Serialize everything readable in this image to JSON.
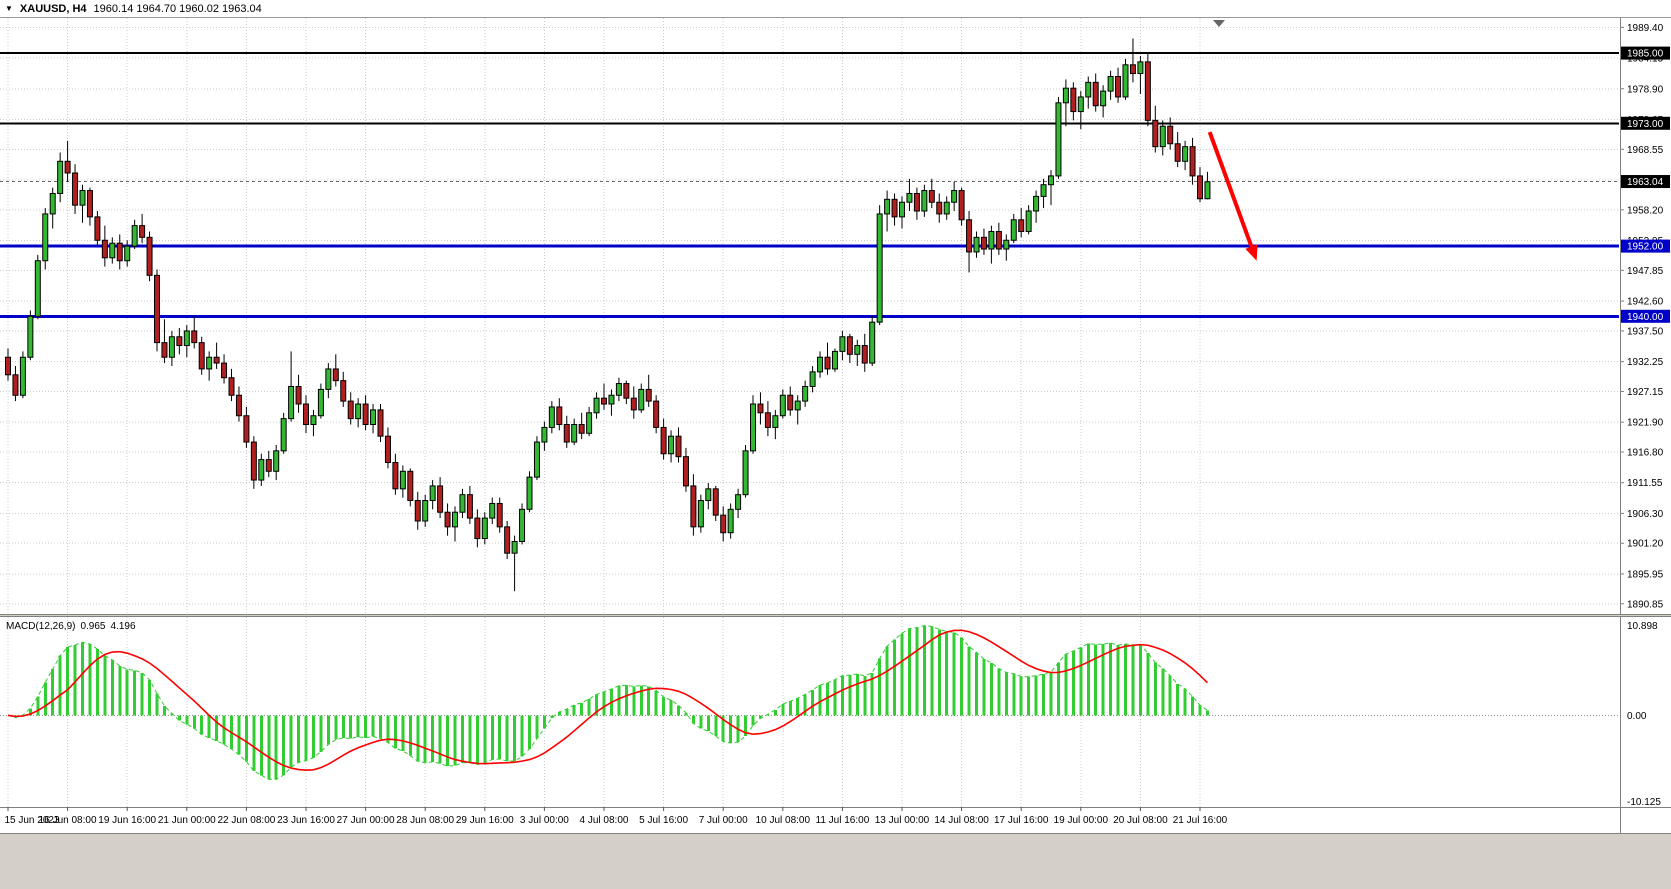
{
  "header": {
    "symbol": "XAUUSD, H4",
    "ohlc": "1960.14 1964.70 1960.02 1963.04"
  },
  "chart_data": {
    "type": "candlestick",
    "symbol": "XAUUSD",
    "timeframe": "H4",
    "title": "XAUUSD, H4  1960.14 1964.70 1960.02 1963.04",
    "price_axis": {
      "range": [
        1889.1,
        1991.0
      ],
      "ticks": [
        1989.4,
        1984.15,
        1978.9,
        1973.65,
        1968.55,
        1963.3,
        1958.2,
        1952.95,
        1947.85,
        1942.6,
        1937.5,
        1932.25,
        1927.15,
        1921.9,
        1916.8,
        1911.55,
        1906.3,
        1901.2,
        1895.95,
        1890.85
      ]
    },
    "time_axis": {
      "every_n_bars": 8,
      "labels": [
        "15 Jun 2023",
        "16 Jun 08:00",
        "19 Jun 16:00",
        "21 Jun 00:00",
        "22 Jun 08:00",
        "23 Jun 16:00",
        "27 Jun 00:00",
        "28 Jun 08:00",
        "29 Jun 16:00",
        "3 Jul 00:00",
        "4 Jul 08:00",
        "5 Jul 16:00",
        "7 Jul 00:00",
        "10 Jul 08:00",
        "11 Jul 16:00",
        "13 Jul 00:00",
        "14 Jul 08:00",
        "17 Jul 16:00",
        "19 Jul 00:00",
        "20 Jul 08:00",
        "21 Jul 16:00"
      ]
    },
    "candles": [
      [
        1933.0,
        1934.5,
        1929.0,
        1930.0
      ],
      [
        1930.0,
        1931.5,
        1925.5,
        1926.5
      ],
      [
        1926.5,
        1934.0,
        1926.0,
        1933.0
      ],
      [
        1933.0,
        1941.0,
        1932.5,
        1940.0
      ],
      [
        1940.0,
        1950.5,
        1939.5,
        1949.5
      ],
      [
        1949.5,
        1958.5,
        1948.0,
        1957.5
      ],
      [
        1957.5,
        1962.0,
        1955.0,
        1961.0
      ],
      [
        1961.0,
        1968.0,
        1959.5,
        1966.5
      ],
      [
        1966.5,
        1970.0,
        1963.0,
        1964.5
      ],
      [
        1964.5,
        1966.0,
        1957.5,
        1959.0
      ],
      [
        1959.0,
        1962.5,
        1956.0,
        1961.5
      ],
      [
        1961.5,
        1962.0,
        1955.5,
        1957.0
      ],
      [
        1957.0,
        1958.0,
        1952.0,
        1953.0
      ],
      [
        1953.0,
        1955.5,
        1948.5,
        1950.0
      ],
      [
        1950.0,
        1953.5,
        1949.0,
        1952.5
      ],
      [
        1952.5,
        1954.0,
        1948.0,
        1949.5
      ],
      [
        1949.5,
        1953.0,
        1948.5,
        1952.0
      ],
      [
        1952.0,
        1956.5,
        1951.5,
        1955.5
      ],
      [
        1955.5,
        1957.5,
        1952.5,
        1953.5
      ],
      [
        1953.5,
        1954.5,
        1946.0,
        1947.0
      ],
      [
        1947.0,
        1948.0,
        1934.0,
        1935.5
      ],
      [
        1935.5,
        1939.5,
        1932.0,
        1933.0
      ],
      [
        1933.0,
        1937.5,
        1931.5,
        1936.5
      ],
      [
        1936.5,
        1938.0,
        1933.5,
        1935.0
      ],
      [
        1935.0,
        1938.5,
        1933.0,
        1937.5
      ],
      [
        1937.5,
        1940.0,
        1934.5,
        1935.5
      ],
      [
        1935.5,
        1936.5,
        1930.0,
        1931.0
      ],
      [
        1931.0,
        1934.0,
        1929.0,
        1933.0
      ],
      [
        1933.0,
        1935.5,
        1931.0,
        1932.0
      ],
      [
        1932.0,
        1933.5,
        1928.5,
        1929.5
      ],
      [
        1929.5,
        1931.0,
        1925.5,
        1926.5
      ],
      [
        1926.5,
        1928.0,
        1922.0,
        1923.0
      ],
      [
        1923.0,
        1924.5,
        1917.5,
        1918.5
      ],
      [
        1918.5,
        1919.5,
        1910.5,
        1912.0
      ],
      [
        1912.0,
        1916.5,
        1911.0,
        1915.5
      ],
      [
        1915.5,
        1917.0,
        1912.5,
        1913.5
      ],
      [
        1913.5,
        1918.0,
        1912.0,
        1917.0
      ],
      [
        1917.0,
        1923.5,
        1916.5,
        1922.5
      ],
      [
        1922.5,
        1934.0,
        1922.0,
        1928.0
      ],
      [
        1928.0,
        1930.0,
        1923.5,
        1925.0
      ],
      [
        1925.0,
        1926.5,
        1920.0,
        1921.5
      ],
      [
        1921.5,
        1924.0,
        1919.5,
        1923.0
      ],
      [
        1923.0,
        1928.5,
        1922.5,
        1927.5
      ],
      [
        1927.5,
        1932.0,
        1926.0,
        1931.0
      ],
      [
        1931.0,
        1933.5,
        1928.0,
        1929.0
      ],
      [
        1929.0,
        1930.5,
        1924.5,
        1925.5
      ],
      [
        1925.5,
        1927.0,
        1921.5,
        1922.5
      ],
      [
        1922.5,
        1926.0,
        1921.0,
        1925.0
      ],
      [
        1925.0,
        1926.5,
        1920.5,
        1921.5
      ],
      [
        1921.5,
        1925.0,
        1920.0,
        1924.0
      ],
      [
        1924.0,
        1925.0,
        1918.5,
        1919.5
      ],
      [
        1919.5,
        1921.0,
        1914.0,
        1915.0
      ],
      [
        1915.0,
        1916.5,
        1909.5,
        1910.5
      ],
      [
        1910.5,
        1914.5,
        1909.0,
        1913.5
      ],
      [
        1913.5,
        1914.0,
        1907.5,
        1908.5
      ],
      [
        1908.5,
        1910.0,
        1903.5,
        1905.0
      ],
      [
        1905.0,
        1909.5,
        1904.0,
        1908.5
      ],
      [
        1908.5,
        1912.0,
        1907.0,
        1911.0
      ],
      [
        1911.0,
        1912.5,
        1905.5,
        1906.5
      ],
      [
        1906.5,
        1908.0,
        1902.5,
        1904.0
      ],
      [
        1904.0,
        1907.5,
        1901.5,
        1906.5
      ],
      [
        1906.5,
        1910.5,
        1905.5,
        1909.5
      ],
      [
        1909.5,
        1911.0,
        1904.5,
        1905.5
      ],
      [
        1905.5,
        1907.0,
        1900.5,
        1902.0
      ],
      [
        1902.0,
        1906.5,
        1901.0,
        1905.5
      ],
      [
        1905.5,
        1909.0,
        1904.5,
        1908.0
      ],
      [
        1908.0,
        1909.0,
        1903.0,
        1904.0
      ],
      [
        1904.0,
        1905.0,
        1898.5,
        1899.5
      ],
      [
        1899.5,
        1902.5,
        1893.0,
        1901.5
      ],
      [
        1901.5,
        1908.0,
        1901.0,
        1907.0
      ],
      [
        1907.0,
        1913.5,
        1906.5,
        1912.5
      ],
      [
        1912.5,
        1919.5,
        1912.0,
        1918.5
      ],
      [
        1918.5,
        1922.0,
        1917.0,
        1921.0
      ],
      [
        1921.0,
        1925.5,
        1920.0,
        1924.5
      ],
      [
        1924.5,
        1926.0,
        1920.5,
        1921.5
      ],
      [
        1921.5,
        1923.0,
        1917.5,
        1918.5
      ],
      [
        1918.5,
        1922.5,
        1918.0,
        1921.5
      ],
      [
        1921.5,
        1923.5,
        1919.0,
        1920.0
      ],
      [
        1920.0,
        1924.5,
        1919.5,
        1923.5
      ],
      [
        1923.5,
        1927.0,
        1922.5,
        1926.0
      ],
      [
        1926.0,
        1928.5,
        1924.0,
        1925.0
      ],
      [
        1925.0,
        1927.5,
        1923.0,
        1926.5
      ],
      [
        1926.5,
        1929.5,
        1925.5,
        1928.5
      ],
      [
        1928.5,
        1929.0,
        1925.0,
        1926.0
      ],
      [
        1926.0,
        1928.0,
        1922.5,
        1924.0
      ],
      [
        1924.0,
        1928.5,
        1923.5,
        1927.5
      ],
      [
        1927.5,
        1930.0,
        1924.5,
        1925.5
      ],
      [
        1925.5,
        1926.5,
        1920.0,
        1921.0
      ],
      [
        1921.0,
        1922.5,
        1915.5,
        1916.5
      ],
      [
        1916.5,
        1920.5,
        1915.0,
        1919.5
      ],
      [
        1919.5,
        1921.0,
        1915.0,
        1916.0
      ],
      [
        1916.0,
        1917.5,
        1910.0,
        1911.0
      ],
      [
        1911.0,
        1913.0,
        1902.5,
        1904.0
      ],
      [
        1904.0,
        1909.5,
        1903.0,
        1908.5
      ],
      [
        1908.5,
        1911.5,
        1907.0,
        1910.5
      ],
      [
        1910.5,
        1911.0,
        1905.0,
        1906.0
      ],
      [
        1906.0,
        1907.5,
        1901.5,
        1903.0
      ],
      [
        1903.0,
        1908.0,
        1902.0,
        1907.0
      ],
      [
        1907.0,
        1910.5,
        1905.5,
        1909.5
      ],
      [
        1909.5,
        1918.0,
        1909.0,
        1917.0
      ],
      [
        1917.0,
        1926.5,
        1916.5,
        1925.0
      ],
      [
        1925.0,
        1927.0,
        1921.5,
        1923.5
      ],
      [
        1923.5,
        1925.5,
        1919.5,
        1921.0
      ],
      [
        1921.0,
        1924.0,
        1919.0,
        1923.0
      ],
      [
        1923.0,
        1927.5,
        1922.5,
        1926.5
      ],
      [
        1926.5,
        1928.0,
        1923.0,
        1924.0
      ],
      [
        1924.0,
        1926.5,
        1921.5,
        1925.5
      ],
      [
        1925.5,
        1929.0,
        1924.5,
        1928.0
      ],
      [
        1928.0,
        1931.5,
        1927.0,
        1930.5
      ],
      [
        1930.5,
        1934.0,
        1929.5,
        1933.0
      ],
      [
        1933.0,
        1935.5,
        1930.0,
        1931.0
      ],
      [
        1931.0,
        1934.5,
        1930.5,
        1934.0
      ],
      [
        1934.0,
        1937.5,
        1932.5,
        1936.5
      ],
      [
        1936.5,
        1937.0,
        1932.0,
        1933.5
      ],
      [
        1933.5,
        1936.0,
        1931.5,
        1935.0
      ],
      [
        1935.0,
        1937.0,
        1930.5,
        1932.0
      ],
      [
        1932.0,
        1940.0,
        1931.5,
        1939.0
      ],
      [
        1939.0,
        1959.0,
        1938.5,
        1957.5
      ],
      [
        1957.5,
        1961.5,
        1954.5,
        1960.0
      ],
      [
        1960.0,
        1961.0,
        1955.5,
        1957.0
      ],
      [
        1957.0,
        1960.5,
        1955.0,
        1959.5
      ],
      [
        1959.5,
        1963.5,
        1958.0,
        1961.0
      ],
      [
        1961.0,
        1962.0,
        1956.5,
        1958.0
      ],
      [
        1958.0,
        1962.5,
        1957.0,
        1961.5
      ],
      [
        1961.5,
        1963.5,
        1958.5,
        1959.5
      ],
      [
        1959.5,
        1961.0,
        1956.0,
        1957.5
      ],
      [
        1957.5,
        1960.5,
        1956.5,
        1959.5
      ],
      [
        1959.5,
        1963.0,
        1958.0,
        1961.5
      ],
      [
        1961.5,
        1962.0,
        1955.5,
        1956.5
      ],
      [
        1956.5,
        1958.0,
        1947.5,
        1951.0
      ],
      [
        1951.0,
        1954.5,
        1950.0,
        1953.5
      ],
      [
        1953.5,
        1955.0,
        1950.5,
        1951.5
      ],
      [
        1951.5,
        1955.5,
        1949.0,
        1954.5
      ],
      [
        1954.5,
        1956.0,
        1950.5,
        1951.5
      ],
      [
        1951.5,
        1954.0,
        1949.5,
        1953.0
      ],
      [
        1953.0,
        1957.5,
        1952.5,
        1956.5
      ],
      [
        1956.5,
        1958.5,
        1953.5,
        1954.5
      ],
      [
        1954.5,
        1959.0,
        1954.0,
        1958.0
      ],
      [
        1958.0,
        1961.5,
        1956.0,
        1960.5
      ],
      [
        1960.5,
        1963.5,
        1958.5,
        1962.5
      ],
      [
        1962.5,
        1965.0,
        1959.0,
        1964.0
      ],
      [
        1964.0,
        1977.5,
        1963.5,
        1976.5
      ],
      [
        1976.5,
        1980.5,
        1972.5,
        1979.0
      ],
      [
        1979.0,
        1980.0,
        1973.5,
        1975.0
      ],
      [
        1975.0,
        1978.5,
        1972.0,
        1977.5
      ],
      [
        1977.5,
        1981.0,
        1975.5,
        1980.0
      ],
      [
        1980.0,
        1981.5,
        1975.0,
        1976.0
      ],
      [
        1976.0,
        1979.5,
        1974.0,
        1978.5
      ],
      [
        1978.5,
        1982.0,
        1977.0,
        1981.0
      ],
      [
        1981.0,
        1982.5,
        1976.5,
        1977.5
      ],
      [
        1977.5,
        1984.0,
        1977.0,
        1983.0
      ],
      [
        1983.0,
        1987.5,
        1980.0,
        1981.5
      ],
      [
        1981.5,
        1984.5,
        1978.0,
        1983.5
      ],
      [
        1983.5,
        1985.0,
        1972.5,
        1973.5
      ],
      [
        1973.5,
        1976.0,
        1968.0,
        1969.0
      ],
      [
        1969.0,
        1973.5,
        1967.5,
        1972.5
      ],
      [
        1972.5,
        1974.0,
        1968.5,
        1969.5
      ],
      [
        1969.5,
        1971.5,
        1965.5,
        1966.5
      ],
      [
        1966.5,
        1970.0,
        1965.0,
        1969.0
      ],
      [
        1969.0,
        1970.5,
        1962.5,
        1964.0
      ],
      [
        1964.0,
        1965.5,
        1959.5,
        1960.1
      ],
      [
        1960.1,
        1964.7,
        1960.0,
        1963.0
      ]
    ],
    "hlines": [
      {
        "price": 1985.0,
        "label": "1985.00",
        "color": "#000000",
        "width": 2,
        "label_bg": "#000000"
      },
      {
        "price": 1973.0,
        "label": "1973.00",
        "color": "#000000",
        "width": 2,
        "label_bg": "#000000"
      },
      {
        "price": 1952.0,
        "label": "1952.00",
        "color": "#0000C8",
        "width": 3,
        "label_bg": "#0000C8"
      },
      {
        "price": 1940.0,
        "label": "1940.00",
        "color": "#0000C8",
        "width": 3,
        "label_bg": "#0000C8"
      }
    ],
    "current_price": {
      "value": 1963.04,
      "label": "1963.04",
      "label_bg": "#000000"
    },
    "trend_arrow": {
      "from_bar": 161.3,
      "from_price": 1971.5,
      "to_bar": 167.6,
      "to_price": 1949.5,
      "color": "#FF0000"
    },
    "macd": {
      "label": "MACD(12,26,9)",
      "value_main": "0.965",
      "value_signal": "4.196",
      "params": [
        12,
        26,
        9
      ],
      "axis_max": 10.898,
      "axis_min": -10.125,
      "axis_labels": {
        "top": "10.898",
        "zero": "0.00",
        "bottom": "-10.125"
      },
      "histogram_color": "#32CD32",
      "signal_color": "#FF0000"
    },
    "colors": {
      "bull": "#33B833",
      "bear": "#B02020",
      "wick": "#000000",
      "grid": "#CDCDCD",
      "axis_text": "#000000",
      "current_line": "#666666"
    }
  }
}
